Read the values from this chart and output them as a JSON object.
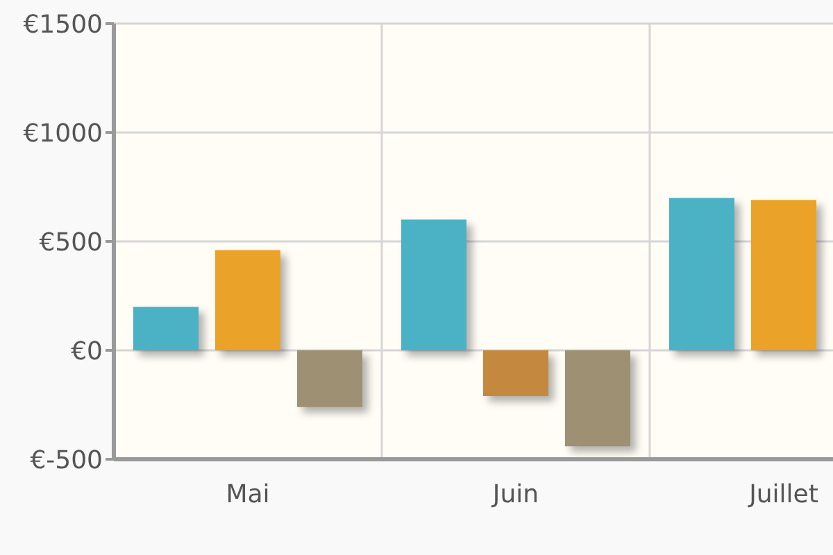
{
  "chart_data": {
    "type": "bar",
    "categories": [
      "Mai",
      "Juin",
      "Juillet"
    ],
    "series": [
      {
        "color": "#4bb2c5",
        "values": [
          200,
          600,
          700
        ]
      },
      {
        "color": "#eaa228",
        "colors": [
          "#eaa228",
          "#c5883f",
          "#eaa228"
        ],
        "values": [
          460,
          -210,
          690
        ]
      },
      {
        "color": "#9e9072",
        "values": [
          -260,
          -440,
          null
        ]
      }
    ],
    "ylim": [
      -500,
      1500
    ],
    "yticks": [
      {
        "value": -500,
        "label": "€-500"
      },
      {
        "value": 0,
        "label": "€0"
      },
      {
        "value": 500,
        "label": "€500"
      },
      {
        "value": 1000,
        "label": "€1000"
      },
      {
        "value": 1500,
        "label": "€1500"
      }
    ],
    "grid": true
  }
}
